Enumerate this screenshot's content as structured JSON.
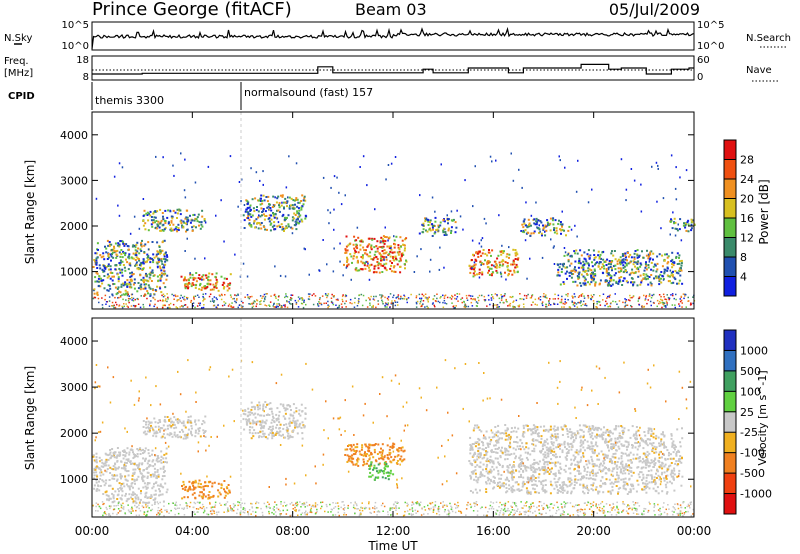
{
  "header": {
    "station": "Prince George (fitACF)",
    "beam": "Beam 03",
    "date": "05/Jul/2009"
  },
  "nsky_panel": {
    "left_label": "N.Sky",
    "left_ticks": [
      "10^5",
      "10^0"
    ],
    "right_label": "N.Search",
    "right_ticks": [
      "10^5",
      "10^0"
    ]
  },
  "freq_panel": {
    "left_label_1": "Freq.",
    "left_label_2": "[MHz]",
    "left_ticks": [
      "18",
      "8"
    ],
    "right_label": "Nave",
    "right_ticks": [
      "60",
      "0"
    ]
  },
  "cpid": {
    "label": "CPID",
    "programs": [
      "themis 3300",
      "normalsound (fast) 157"
    ]
  },
  "x_axis": {
    "label": "Time UT",
    "ticks": [
      "00:00",
      "04:00",
      "08:00",
      "12:00",
      "16:00",
      "20:00",
      "00:00"
    ]
  },
  "power_panel": {
    "ylabel": "Slant Range [km]",
    "yticks": [
      "1000",
      "2000",
      "3000",
      "4000"
    ],
    "colorbar_label": "Power [dB]",
    "colorbar_ticks": [
      "4",
      "8",
      "12",
      "16",
      "20",
      "24",
      "28"
    ],
    "colors": [
      "#1020e0",
      "#2050b0",
      "#3a8a6a",
      "#60c040",
      "#d8c020",
      "#f09020",
      "#f05010",
      "#e01010"
    ]
  },
  "velocity_panel": {
    "ylabel": "Slant Range [km]",
    "yticks": [
      "1000",
      "2000",
      "3000",
      "4000"
    ],
    "colorbar_label": "Velocity [m s^-1]",
    "colorbar_ticks": [
      "1000",
      "500",
      "100",
      "25",
      "-25",
      "-100",
      "-500",
      "-1000"
    ],
    "colors": [
      "#2030c0",
      "#3070c0",
      "#40a060",
      "#60d040",
      "#c8c8c8",
      "#f0b020",
      "#f08020",
      "#f04010",
      "#e01010"
    ]
  },
  "chart_data": {
    "type": "heatmap",
    "x_range_hours": [
      0,
      24
    ],
    "y_range_km": [
      180,
      4500
    ],
    "cpid_segments": [
      {
        "program": "themis 3300",
        "start_hour": 0,
        "end_hour": 6
      },
      {
        "program": "normalsound (fast) 157",
        "start_hour": 6,
        "end_hour": 24
      }
    ],
    "power_regions": [
      {
        "t0": 0.0,
        "t1": 3.0,
        "r0": 500,
        "r1": 1700,
        "level": "mid"
      },
      {
        "t0": 2.0,
        "t1": 4.5,
        "r0": 1900,
        "r1": 2400,
        "level": "mid"
      },
      {
        "t0": 3.5,
        "t1": 5.5,
        "r0": 600,
        "r1": 1000,
        "level": "high"
      },
      {
        "t0": 6.0,
        "t1": 8.5,
        "r0": 1900,
        "r1": 2700,
        "level": "mid"
      },
      {
        "t0": 10.0,
        "t1": 12.5,
        "r0": 1000,
        "r1": 1800,
        "level": "high"
      },
      {
        "t0": 13.0,
        "t1": 14.5,
        "r0": 1800,
        "r1": 2200,
        "level": "mid"
      },
      {
        "t0": 15.0,
        "t1": 17.0,
        "r0": 900,
        "r1": 1500,
        "level": "high"
      },
      {
        "t0": 17.0,
        "t1": 19.0,
        "r0": 1800,
        "r1": 2200,
        "level": "mid"
      },
      {
        "t0": 18.5,
        "t1": 23.5,
        "r0": 700,
        "r1": 1500,
        "level": "mid"
      },
      {
        "t0": 23.0,
        "t1": 24.0,
        "r0": 1900,
        "r1": 2200,
        "level": "mid"
      }
    ],
    "velocity_regions": [
      {
        "t0": 0.0,
        "t1": 3.0,
        "r0": 500,
        "r1": 1700,
        "v": "near-zero"
      },
      {
        "t0": 2.0,
        "t1": 4.5,
        "r0": 1900,
        "r1": 2400,
        "v": "near-zero"
      },
      {
        "t0": 3.5,
        "t1": 5.5,
        "r0": 600,
        "r1": 1000,
        "v": "-100 to -500"
      },
      {
        "t0": 6.0,
        "t1": 8.5,
        "r0": 1900,
        "r1": 2700,
        "v": "near-zero"
      },
      {
        "t0": 10.0,
        "t1": 12.5,
        "r0": 1300,
        "r1": 1800,
        "v": "-100 to -500"
      },
      {
        "t0": 11.0,
        "t1": 12.0,
        "r0": 1000,
        "r1": 1400,
        "v": "100"
      },
      {
        "t0": 15.0,
        "t1": 23.5,
        "r0": 700,
        "r1": 2200,
        "v": "near-zero"
      }
    ]
  }
}
